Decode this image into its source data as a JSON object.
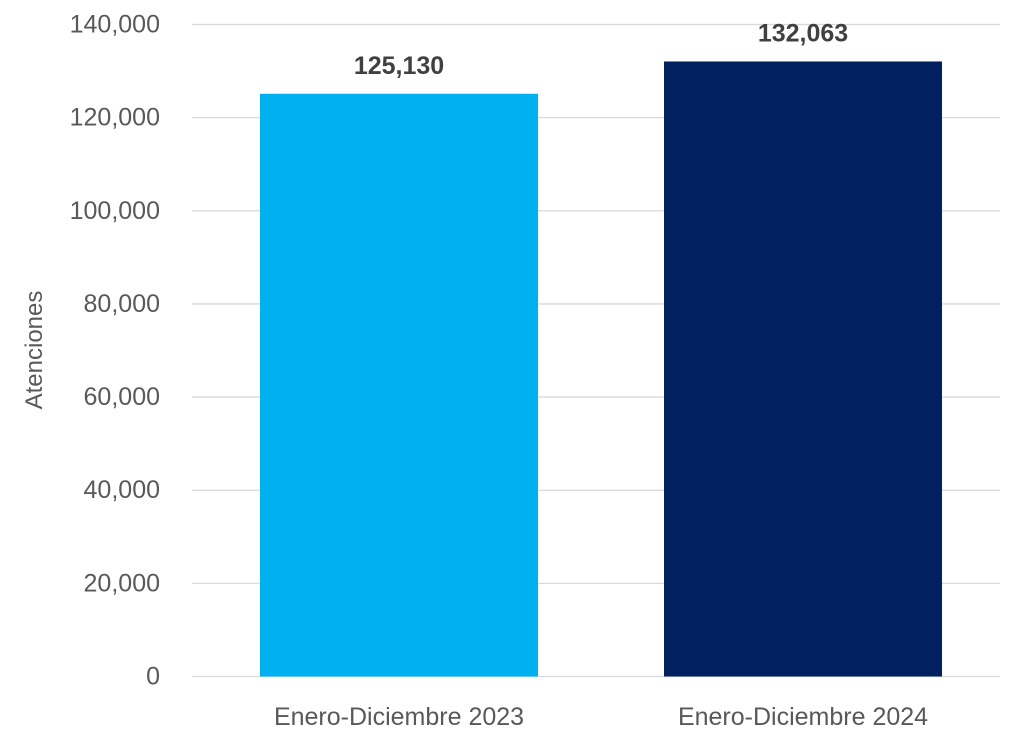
{
  "chart_data": {
    "type": "bar",
    "title": "",
    "xlabel": "",
    "ylabel": "Atenciones",
    "ylim": [
      0,
      140000
    ],
    "y_ticks": [
      0,
      20000,
      40000,
      60000,
      80000,
      100000,
      120000,
      140000
    ],
    "y_tick_labels": [
      "0",
      "20,000",
      "40,000",
      "60,000",
      "80,000",
      "100,000",
      "120,000",
      "140,000"
    ],
    "categories": [
      "Enero-Diciembre 2023",
      "Enero-Diciembre 2024"
    ],
    "values": [
      125130,
      132063
    ],
    "data_labels": [
      "125,130",
      "132,063"
    ],
    "bar_colors": [
      "#00b0f0",
      "#002060"
    ],
    "grid": true,
    "legend": "none"
  }
}
